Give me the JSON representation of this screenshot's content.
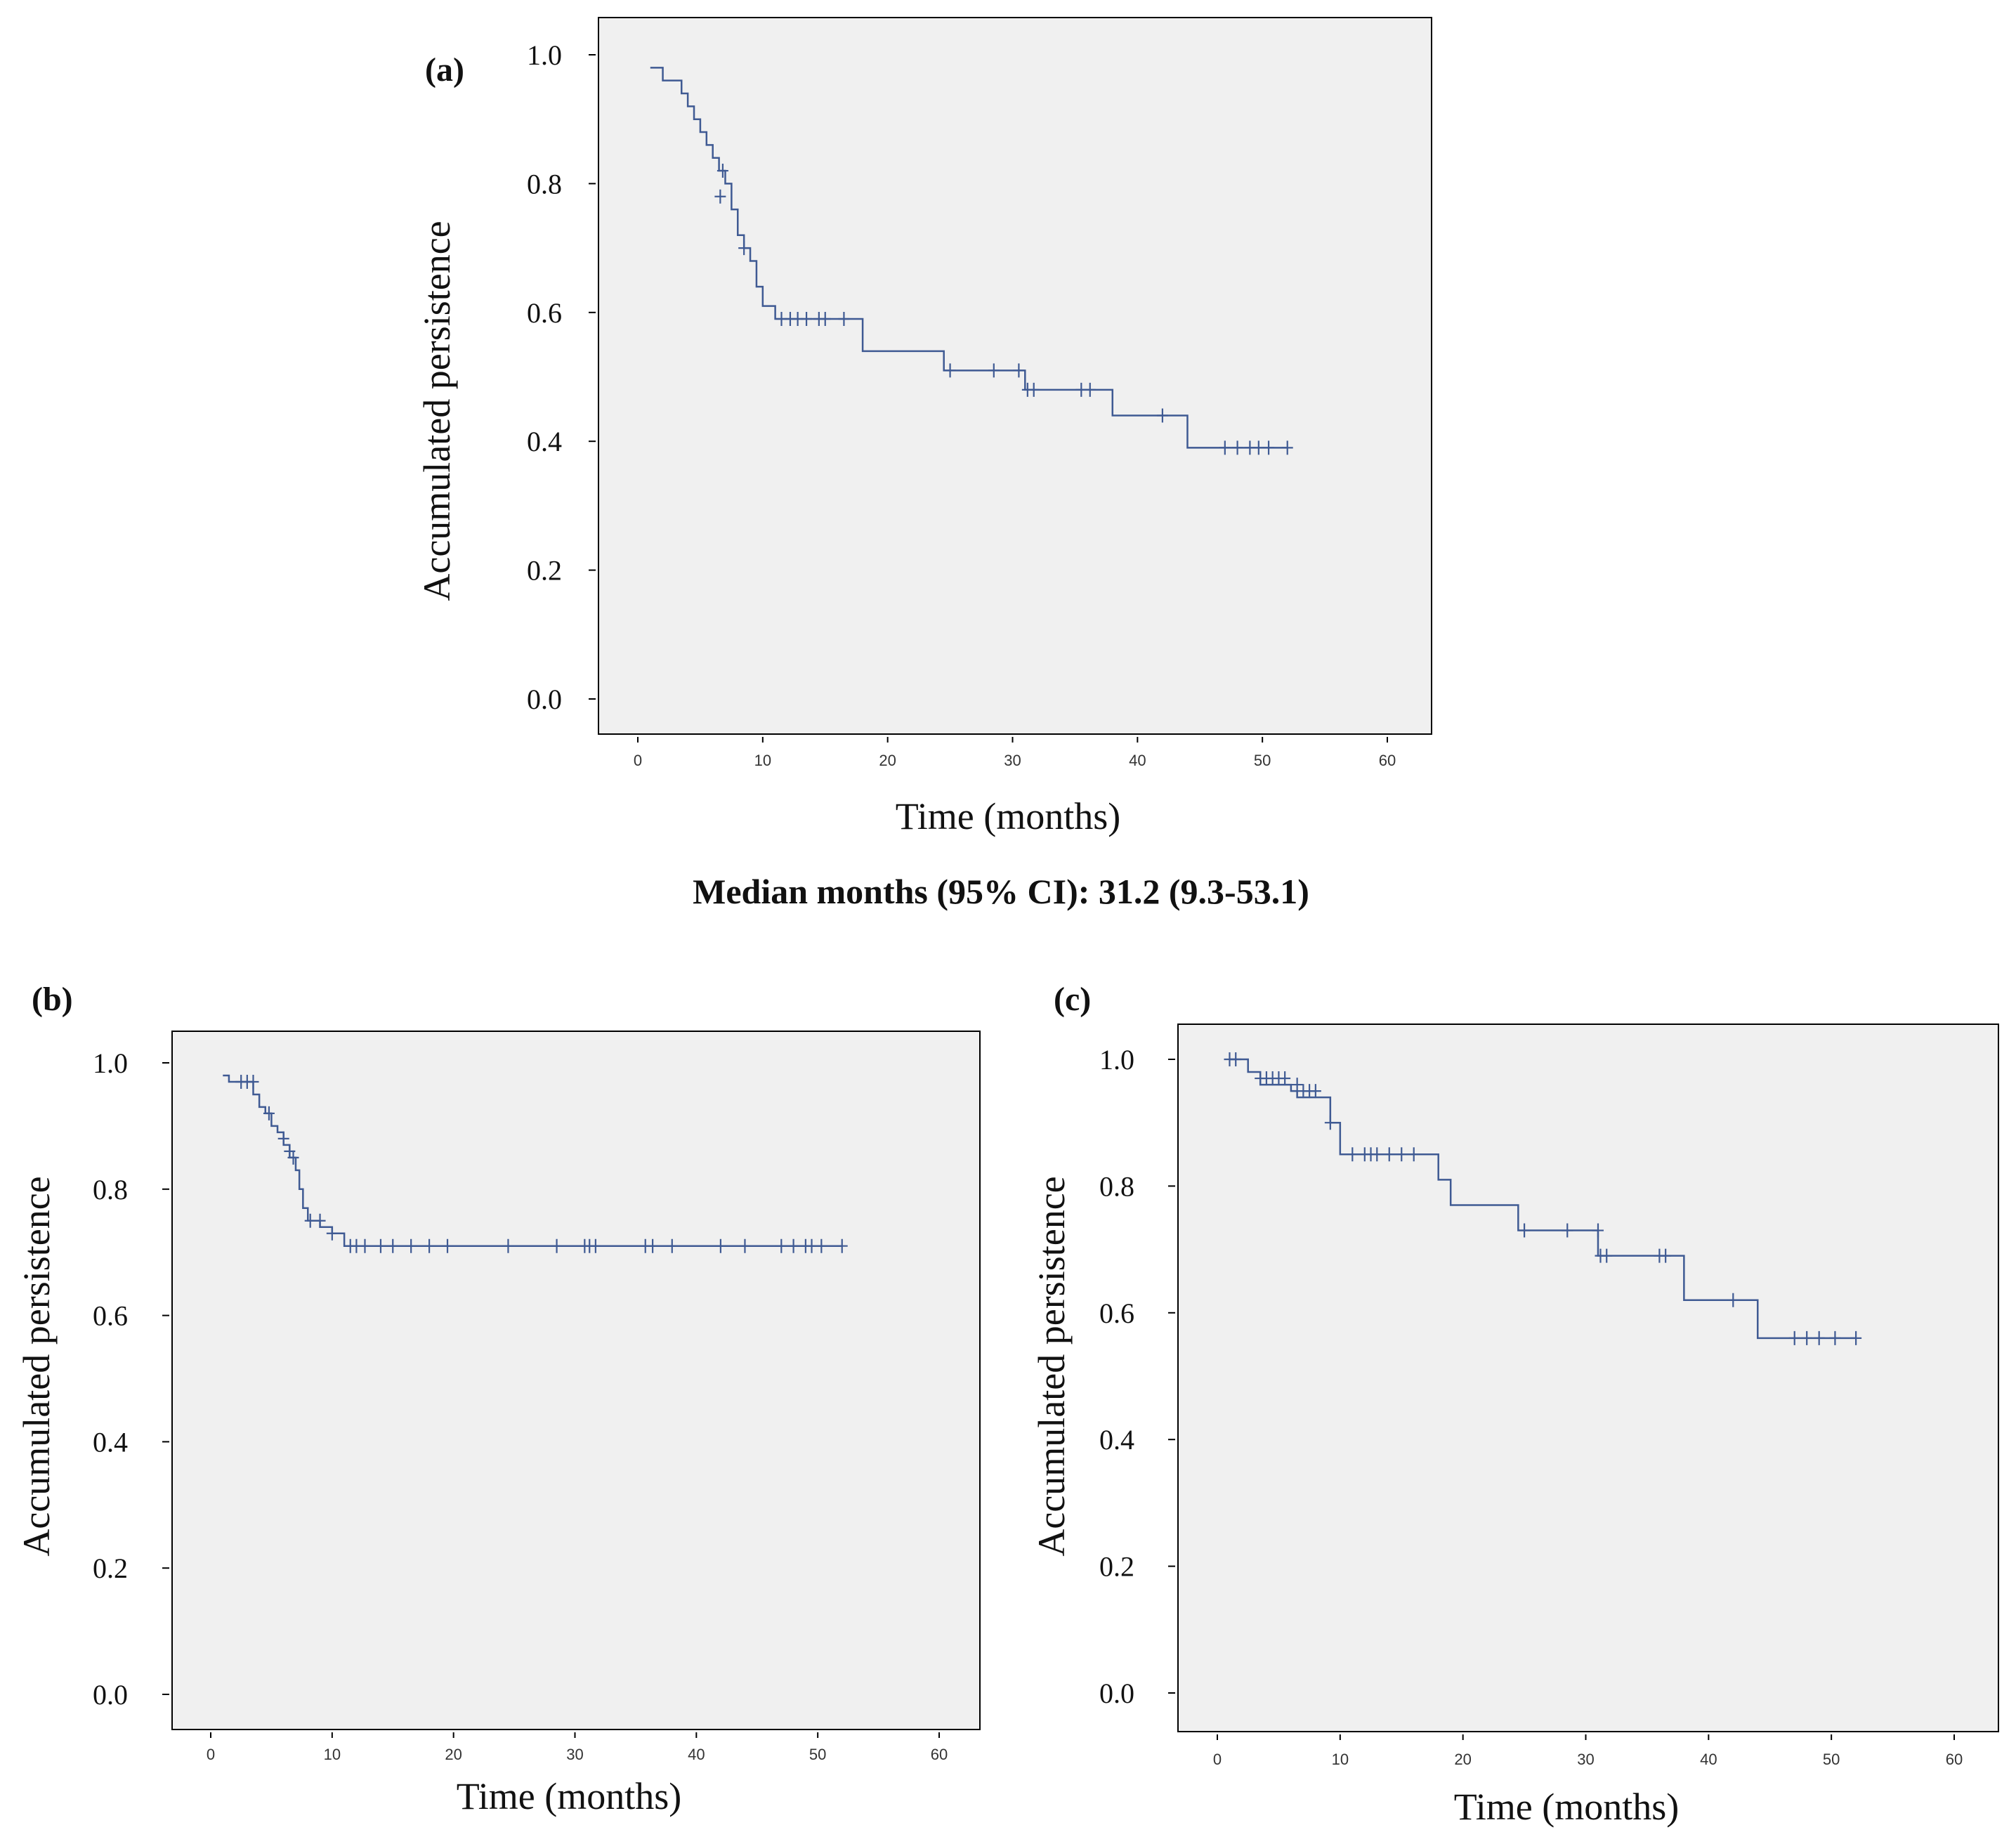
{
  "caption": "Median months (95% CI): 31.2 (9.3-53.1)",
  "colors": {
    "plot_bg": "#f0f0f0",
    "curve": "#3f5a93",
    "axis": "#000000"
  },
  "chart_data": [
    {
      "id": "a",
      "type": "line",
      "subtype": "kaplan-meier-step",
      "panel_label": "(a)",
      "xlabel": "Time (months)",
      "ylabel": "Accumulated persistence",
      "xlim": [
        0,
        60
      ],
      "ylim": [
        0.0,
        1.0
      ],
      "xticks": [
        "0",
        "10",
        "20",
        "30",
        "40",
        "50",
        "60"
      ],
      "yticks": [
        "0.0",
        "0.2",
        "0.4",
        "0.6",
        "0.8",
        "1.0"
      ],
      "steps": [
        [
          1,
          0.98
        ],
        [
          2,
          0.96
        ],
        [
          3.5,
          0.94
        ],
        [
          4,
          0.92
        ],
        [
          4.5,
          0.9
        ],
        [
          5,
          0.88
        ],
        [
          5.5,
          0.86
        ],
        [
          6,
          0.84
        ],
        [
          6.5,
          0.82
        ],
        [
          7,
          0.8
        ],
        [
          7.5,
          0.76
        ],
        [
          8,
          0.72
        ],
        [
          8.5,
          0.7
        ],
        [
          9,
          0.68
        ],
        [
          9.5,
          0.64
        ],
        [
          10,
          0.61
        ],
        [
          11,
          0.59
        ],
        [
          18,
          0.54
        ],
        [
          24.5,
          0.51
        ],
        [
          31,
          0.48
        ],
        [
          38,
          0.44
        ],
        [
          44,
          0.39
        ],
        [
          52,
          0.39
        ]
      ],
      "censored": [
        [
          6.8,
          0.82
        ],
        [
          6.6,
          0.78
        ],
        [
          8.5,
          0.7
        ],
        [
          11.5,
          0.59
        ],
        [
          12.2,
          0.59
        ],
        [
          12.8,
          0.59
        ],
        [
          13.5,
          0.59
        ],
        [
          14.5,
          0.59
        ],
        [
          15,
          0.59
        ],
        [
          16.5,
          0.59
        ],
        [
          25,
          0.51
        ],
        [
          28.5,
          0.51
        ],
        [
          30.5,
          0.51
        ],
        [
          31.2,
          0.48
        ],
        [
          31.7,
          0.48
        ],
        [
          35.5,
          0.48
        ],
        [
          36.2,
          0.48
        ],
        [
          42,
          0.44
        ],
        [
          47,
          0.39
        ],
        [
          48,
          0.39
        ],
        [
          49,
          0.39
        ],
        [
          49.7,
          0.39
        ],
        [
          50.5,
          0.39
        ],
        [
          52,
          0.39
        ]
      ]
    },
    {
      "id": "b",
      "type": "line",
      "subtype": "kaplan-meier-step",
      "panel_label": "(b)",
      "xlabel": "Time (months)",
      "ylabel": "Accumulated persistence",
      "xlim": [
        0,
        60
      ],
      "ylim": [
        0.0,
        1.0
      ],
      "xticks": [
        "0",
        "10",
        "20",
        "30",
        "40",
        "50",
        "60"
      ],
      "yticks": [
        "0.0",
        "0.2",
        "0.4",
        "0.6",
        "0.8",
        "1.0"
      ],
      "steps": [
        [
          1,
          0.98
        ],
        [
          1.5,
          0.97
        ],
        [
          3.5,
          0.95
        ],
        [
          4,
          0.93
        ],
        [
          4.5,
          0.92
        ],
        [
          5,
          0.9
        ],
        [
          5.5,
          0.89
        ],
        [
          6,
          0.87
        ],
        [
          6.5,
          0.85
        ],
        [
          7,
          0.83
        ],
        [
          7.3,
          0.8
        ],
        [
          7.6,
          0.77
        ],
        [
          8,
          0.75
        ],
        [
          9,
          0.74
        ],
        [
          10,
          0.73
        ],
        [
          11,
          0.71
        ],
        [
          52,
          0.71
        ]
      ],
      "censored": [
        [
          2.5,
          0.97
        ],
        [
          3,
          0.97
        ],
        [
          3.5,
          0.97
        ],
        [
          4.8,
          0.92
        ],
        [
          6,
          0.88
        ],
        [
          6.5,
          0.86
        ],
        [
          6.8,
          0.85
        ],
        [
          8.2,
          0.75
        ],
        [
          9,
          0.75
        ],
        [
          10,
          0.73
        ],
        [
          11.5,
          0.71
        ],
        [
          12,
          0.71
        ],
        [
          12.7,
          0.71
        ],
        [
          14,
          0.71
        ],
        [
          15,
          0.71
        ],
        [
          16.5,
          0.71
        ],
        [
          18,
          0.71
        ],
        [
          19.5,
          0.71
        ],
        [
          24.5,
          0.71
        ],
        [
          28.5,
          0.71
        ],
        [
          30.8,
          0.71
        ],
        [
          31.2,
          0.71
        ],
        [
          31.7,
          0.71
        ],
        [
          35.8,
          0.71
        ],
        [
          36.4,
          0.71
        ],
        [
          38,
          0.71
        ],
        [
          42,
          0.71
        ],
        [
          44,
          0.71
        ],
        [
          47,
          0.71
        ],
        [
          48,
          0.71
        ],
        [
          49,
          0.71
        ],
        [
          49.5,
          0.71
        ],
        [
          50.3,
          0.71
        ],
        [
          52,
          0.71
        ]
      ]
    },
    {
      "id": "c",
      "type": "line",
      "subtype": "kaplan-meier-step",
      "panel_label": "(c)",
      "xlabel": "Time (months)",
      "ylabel": "Accumulated persistence",
      "xlim": [
        0,
        60
      ],
      "ylim": [
        0.0,
        1.0
      ],
      "xticks": [
        "0",
        "10",
        "20",
        "30",
        "40",
        "50",
        "60"
      ],
      "yticks": [
        "0.0",
        "0.2",
        "0.4",
        "0.6",
        "0.8",
        "1.0"
      ],
      "steps": [
        [
          1,
          1.0
        ],
        [
          2.5,
          0.98
        ],
        [
          3.5,
          0.96
        ],
        [
          6,
          0.95
        ],
        [
          6.5,
          0.94
        ],
        [
          8.5,
          0.94
        ],
        [
          9.2,
          0.9
        ],
        [
          10,
          0.85
        ],
        [
          18,
          0.81
        ],
        [
          19,
          0.77
        ],
        [
          24.5,
          0.73
        ],
        [
          31,
          0.69
        ],
        [
          38,
          0.62
        ],
        [
          44,
          0.56
        ],
        [
          52,
          0.56
        ]
      ],
      "censored": [
        [
          1,
          1.0
        ],
        [
          1.5,
          1.0
        ],
        [
          3.5,
          0.97
        ],
        [
          4,
          0.97
        ],
        [
          4.5,
          0.97
        ],
        [
          5,
          0.97
        ],
        [
          5.5,
          0.97
        ],
        [
          6.5,
          0.96
        ],
        [
          7,
          0.95
        ],
        [
          7.5,
          0.95
        ],
        [
          8,
          0.95
        ],
        [
          9.2,
          0.9
        ],
        [
          11,
          0.85
        ],
        [
          12,
          0.85
        ],
        [
          12.5,
          0.85
        ],
        [
          13,
          0.85
        ],
        [
          14,
          0.85
        ],
        [
          15,
          0.85
        ],
        [
          16,
          0.85
        ],
        [
          25,
          0.73
        ],
        [
          28.5,
          0.73
        ],
        [
          31,
          0.73
        ],
        [
          31.2,
          0.69
        ],
        [
          31.7,
          0.69
        ],
        [
          36,
          0.69
        ],
        [
          36.5,
          0.69
        ],
        [
          42,
          0.62
        ],
        [
          47,
          0.56
        ],
        [
          48,
          0.56
        ],
        [
          49,
          0.56
        ],
        [
          50.3,
          0.56
        ],
        [
          52,
          0.56
        ]
      ]
    }
  ]
}
